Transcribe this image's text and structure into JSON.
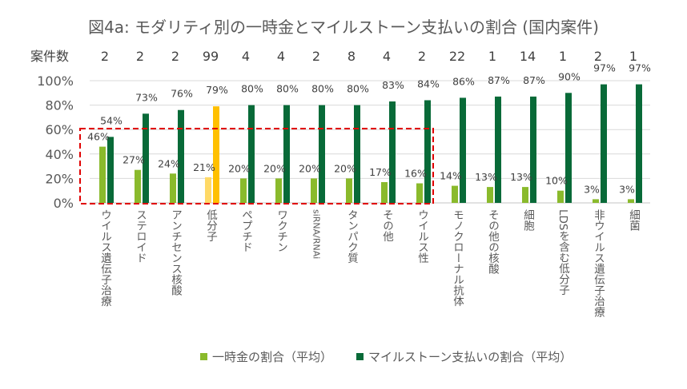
{
  "chart_data": {
    "type": "bar",
    "title": "図4a: モダリティ別の一時金とマイルストーン支払いの割合 (国内案件)",
    "count_label": "案件数",
    "categories": [
      "ウイルス遺伝子治療",
      "ステロイド",
      "アンチセンス核酸",
      "低分子",
      "ペプチド",
      "ワクチン",
      "siRNA/RNAi",
      "タンパク質",
      "その他",
      "ウイルス性",
      "モノクローナル抗体",
      "その他の核酸",
      "細胞",
      "LDSを含む低分子",
      "非ウイルス遺伝子治療",
      "細菌"
    ],
    "counts": [
      "2",
      "2",
      "2",
      "99",
      "4",
      "4",
      "2",
      "8",
      "4",
      "2",
      "22",
      "1",
      "14",
      "1",
      "2",
      "1"
    ],
    "series": [
      {
        "name": "一時金の割合（平均）",
        "color": "#8aba2c",
        "highlight_color": "#ffd966",
        "values": [
          46,
          27,
          24,
          21,
          20,
          20,
          20,
          20,
          17,
          16,
          14,
          13,
          13,
          10,
          3,
          3
        ]
      },
      {
        "name": "マイルストーン支払いの割合（平均）",
        "color": "#086a38",
        "highlight_color": "#ffc000",
        "values": [
          54,
          73,
          76,
          79,
          80,
          80,
          80,
          80,
          83,
          84,
          86,
          87,
          87,
          90,
          97,
          97
        ]
      }
    ],
    "highlight_index": 3,
    "yticks": [
      "0%",
      "20%",
      "40%",
      "60%",
      "80%",
      "100%"
    ],
    "ylim": [
      0,
      100
    ],
    "grid": true,
    "legend": "bottom",
    "annotation": "red dashed box around first 10 categories below 60%"
  }
}
